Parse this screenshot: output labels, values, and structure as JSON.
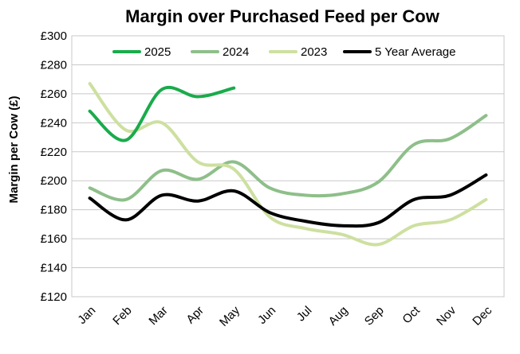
{
  "chart_data": {
    "type": "line",
    "title": "Margin over Purchased Feed per Cow",
    "xlabel": "",
    "ylabel": "Margin per Cow (£)",
    "categories": [
      "Jan",
      "Feb",
      "Mar",
      "Apr",
      "May",
      "Jun",
      "Jul",
      "Aug",
      "Sep",
      "Oct",
      "Nov",
      "Dec"
    ],
    "ylim": [
      120,
      300
    ],
    "yticks": [
      120,
      140,
      160,
      180,
      200,
      220,
      240,
      260,
      280,
      300
    ],
    "ytick_labels": [
      "£120",
      "£140",
      "£160",
      "£180",
      "£200",
      "£220",
      "£240",
      "£260",
      "£280",
      "£300"
    ],
    "grid": "horizontal",
    "legend_position": "top",
    "series": [
      {
        "name": "2025",
        "color": "#1aab4b",
        "values": [
          248,
          228,
          263,
          258,
          264,
          null,
          null,
          null,
          null,
          null,
          null,
          null
        ]
      },
      {
        "name": "2024",
        "color": "#8ebf8a",
        "values": [
          195,
          187,
          207,
          201,
          213,
          195,
          190,
          191,
          199,
          225,
          229,
          245
        ]
      },
      {
        "name": "2023",
        "color": "#cde0a0",
        "values": [
          267,
          235,
          240,
          213,
          208,
          175,
          167,
          163,
          156,
          169,
          173,
          187
        ]
      },
      {
        "name": "5 Year Average",
        "color": "#000000",
        "values": [
          188,
          173,
          190,
          186,
          193,
          178,
          172,
          169,
          171,
          187,
          190,
          204
        ]
      }
    ]
  }
}
